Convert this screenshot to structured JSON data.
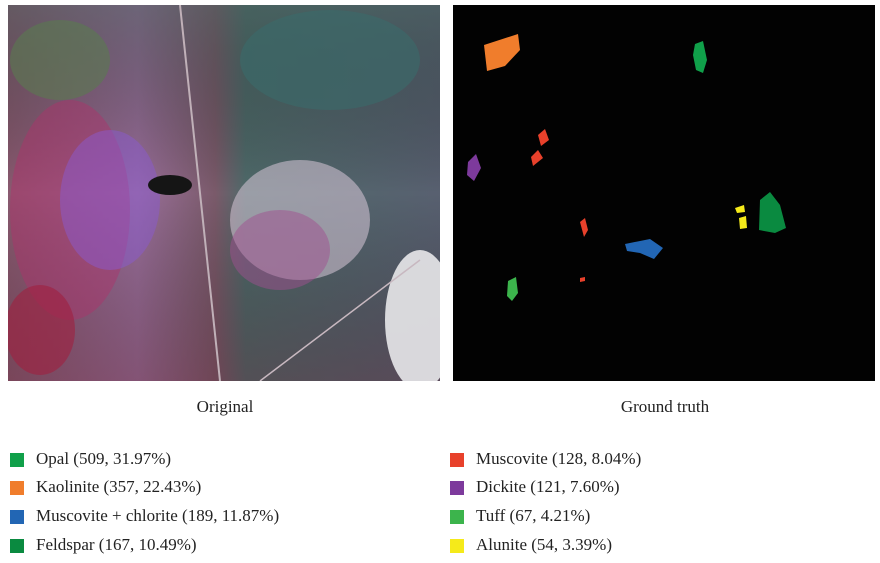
{
  "panels": [
    {
      "caption": "Original"
    },
    {
      "caption": "Ground truth"
    }
  ],
  "legend": {
    "items": [
      {
        "label": "Opal (509, 31.97%)",
        "color": "#10a04a"
      },
      {
        "label": "Kaolinite (357, 22.43%)",
        "color": "#f07d2c"
      },
      {
        "label": "Muscovite + chlorite (189, 11.87%)",
        "color": "#2266b4"
      },
      {
        "label": "Feldspar (167, 10.49%)",
        "color": "#0a8a40"
      },
      {
        "label": "Muscovite (128, 8.04%)",
        "color": "#e8412b"
      },
      {
        "label": "Dickite (121, 7.60%)",
        "color": "#7d3a9c"
      },
      {
        "label": "Tuff (67, 4.21%)",
        "color": "#3cb44c"
      },
      {
        "label": "Alunite (54, 3.39%)",
        "color": "#f5ea1a"
      }
    ]
  }
}
